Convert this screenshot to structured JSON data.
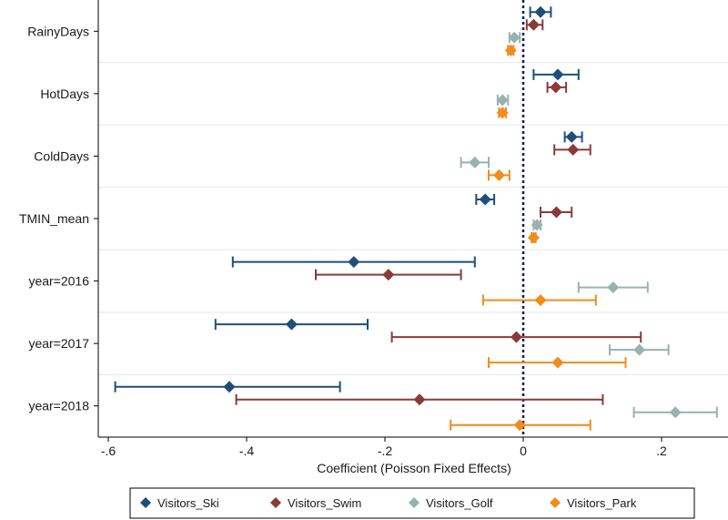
{
  "chart_data": {
    "type": "coefficient-plot",
    "xlabel": "Coefficient (Poisson Fixed Effects)",
    "xlim": [
      -0.62,
      0.3
    ],
    "xticks": [
      -0.6,
      -0.4,
      -0.2,
      0,
      0.2
    ],
    "xtick_labels": [
      "-.6",
      "-.4",
      "-.2",
      "0",
      ".2"
    ],
    "reference_line": 0,
    "categories": [
      "RainyDays",
      "HotDays",
      "ColdDays",
      "TMIN_mean",
      "year=2016",
      "year=2017",
      "year=2018"
    ],
    "series": [
      {
        "name": "Visitors_Ski",
        "color": "#1f4e79",
        "points": [
          {
            "category": "RainyDays",
            "coef": 0.025,
            "lo": 0.01,
            "hi": 0.04
          },
          {
            "category": "HotDays",
            "coef": 0.05,
            "lo": 0.015,
            "hi": 0.08
          },
          {
            "category": "ColdDays",
            "coef": 0.07,
            "lo": 0.06,
            "hi": 0.085
          },
          {
            "category": "TMIN_mean",
            "coef": -0.055,
            "lo": -0.068,
            "hi": -0.042
          },
          {
            "category": "year=2016",
            "coef": -0.245,
            "lo": -0.42,
            "hi": -0.07
          },
          {
            "category": "year=2017",
            "coef": -0.335,
            "lo": -0.445,
            "hi": -0.225
          },
          {
            "category": "year=2018",
            "coef": -0.425,
            "lo": -0.59,
            "hi": -0.265
          }
        ]
      },
      {
        "name": "Visitors_Swim",
        "color": "#8b3a3a",
        "points": [
          {
            "category": "RainyDays",
            "coef": 0.015,
            "lo": 0.005,
            "hi": 0.028
          },
          {
            "category": "HotDays",
            "coef": 0.047,
            "lo": 0.035,
            "hi": 0.062
          },
          {
            "category": "ColdDays",
            "coef": 0.072,
            "lo": 0.045,
            "hi": 0.097
          },
          {
            "category": "TMIN_mean",
            "coef": 0.048,
            "lo": 0.025,
            "hi": 0.07
          },
          {
            "category": "year=2016",
            "coef": -0.195,
            "lo": -0.3,
            "hi": -0.09
          },
          {
            "category": "year=2017",
            "coef": -0.01,
            "lo": -0.19,
            "hi": 0.17
          },
          {
            "category": "year=2018",
            "coef": -0.15,
            "lo": -0.415,
            "hi": 0.115
          }
        ]
      },
      {
        "name": "Visitors_Golf",
        "color": "#97b3b0",
        "points": [
          {
            "category": "RainyDays",
            "coef": -0.013,
            "lo": -0.02,
            "hi": -0.005
          },
          {
            "category": "HotDays",
            "coef": -0.03,
            "lo": -0.037,
            "hi": -0.022
          },
          {
            "category": "ColdDays",
            "coef": -0.07,
            "lo": -0.09,
            "hi": -0.05
          },
          {
            "category": "TMIN_mean",
            "coef": 0.02,
            "lo": 0.015,
            "hi": 0.025
          },
          {
            "category": "year=2016",
            "coef": 0.13,
            "lo": 0.08,
            "hi": 0.18
          },
          {
            "category": "year=2017",
            "coef": 0.168,
            "lo": 0.125,
            "hi": 0.21
          },
          {
            "category": "year=2018",
            "coef": 0.22,
            "lo": 0.16,
            "hi": 0.28
          }
        ]
      },
      {
        "name": "Visitors_Park",
        "color": "#f28c1c",
        "points": [
          {
            "category": "RainyDays",
            "coef": -0.018,
            "lo": -0.022,
            "hi": -0.014
          },
          {
            "category": "HotDays",
            "coef": -0.03,
            "lo": -0.035,
            "hi": -0.025
          },
          {
            "category": "ColdDays",
            "coef": -0.035,
            "lo": -0.05,
            "hi": -0.02
          },
          {
            "category": "TMIN_mean",
            "coef": 0.015,
            "lo": 0.012,
            "hi": 0.018
          },
          {
            "category": "year=2016",
            "coef": 0.025,
            "lo": -0.058,
            "hi": 0.105
          },
          {
            "category": "year=2017",
            "coef": 0.05,
            "lo": -0.05,
            "hi": 0.148
          },
          {
            "category": "year=2018",
            "coef": -0.005,
            "lo": -0.105,
            "hi": 0.097
          }
        ]
      }
    ],
    "legend": [
      "Visitors_Ski",
      "Visitors_Swim",
      "Visitors_Golf",
      "Visitors_Park"
    ],
    "legend_position": "bottom"
  }
}
